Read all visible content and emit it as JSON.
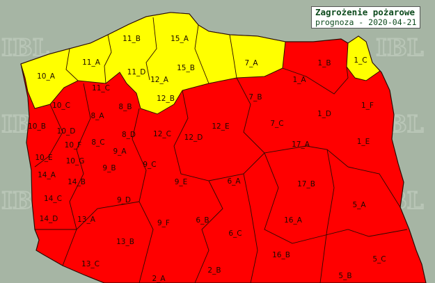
{
  "legend": {
    "title": "Zagrożenie pożarowe",
    "subtitle": "prognoza - 2020-04-21"
  },
  "watermark": "IBL",
  "colors": {
    "background": "#a6b5a4",
    "level_high": "#ff0000",
    "level_low": "#ffff00",
    "border": "#2a0a00"
  },
  "regions": [
    {
      "id": "1_A",
      "level": "high"
    },
    {
      "id": "1_B",
      "level": "high"
    },
    {
      "id": "1_C",
      "level": "low"
    },
    {
      "id": "1_D",
      "level": "high"
    },
    {
      "id": "1_E",
      "level": "high"
    },
    {
      "id": "1_F",
      "level": "high"
    },
    {
      "id": "2_A",
      "level": "high"
    },
    {
      "id": "2_B",
      "level": "high"
    },
    {
      "id": "5_A",
      "level": "high"
    },
    {
      "id": "5_B",
      "level": "high"
    },
    {
      "id": "5_C",
      "level": "high"
    },
    {
      "id": "6_A",
      "level": "high"
    },
    {
      "id": "6_B",
      "level": "high"
    },
    {
      "id": "6_C",
      "level": "high"
    },
    {
      "id": "7_A",
      "level": "low"
    },
    {
      "id": "7_B",
      "level": "high"
    },
    {
      "id": "7_C",
      "level": "high"
    },
    {
      "id": "8_A",
      "level": "high"
    },
    {
      "id": "8_B",
      "level": "high"
    },
    {
      "id": "8_C",
      "level": "high"
    },
    {
      "id": "8_D",
      "level": "high"
    },
    {
      "id": "9_A",
      "level": "high"
    },
    {
      "id": "9_B",
      "level": "high"
    },
    {
      "id": "9_C",
      "level": "high"
    },
    {
      "id": "9_D",
      "level": "high"
    },
    {
      "id": "9_E",
      "level": "high"
    },
    {
      "id": "9_F",
      "level": "high"
    },
    {
      "id": "10_A",
      "level": "low"
    },
    {
      "id": "10_B",
      "level": "high"
    },
    {
      "id": "10_C",
      "level": "high"
    },
    {
      "id": "10_D",
      "level": "high"
    },
    {
      "id": "10_E",
      "level": "high"
    },
    {
      "id": "10_F",
      "level": "high"
    },
    {
      "id": "10_G",
      "level": "high"
    },
    {
      "id": "11_A",
      "level": "low"
    },
    {
      "id": "11_B",
      "level": "low"
    },
    {
      "id": "11_C",
      "level": "high"
    },
    {
      "id": "11_D",
      "level": "low"
    },
    {
      "id": "12_A",
      "level": "low"
    },
    {
      "id": "12_B",
      "level": "low"
    },
    {
      "id": "12_C",
      "level": "high"
    },
    {
      "id": "12_D",
      "level": "high"
    },
    {
      "id": "12_E",
      "level": "high"
    },
    {
      "id": "13_A",
      "level": "high"
    },
    {
      "id": "13_B",
      "level": "high"
    },
    {
      "id": "13_C",
      "level": "high"
    },
    {
      "id": "14_A",
      "level": "high"
    },
    {
      "id": "14_B",
      "level": "high"
    },
    {
      "id": "14_C",
      "level": "high"
    },
    {
      "id": "14_D",
      "level": "high"
    },
    {
      "id": "15_A",
      "level": "low"
    },
    {
      "id": "15_B",
      "level": "low"
    },
    {
      "id": "16_A",
      "level": "high"
    },
    {
      "id": "16_B",
      "level": "high"
    },
    {
      "id": "17_A",
      "level": "high"
    },
    {
      "id": "17_B",
      "level": "high"
    }
  ]
}
